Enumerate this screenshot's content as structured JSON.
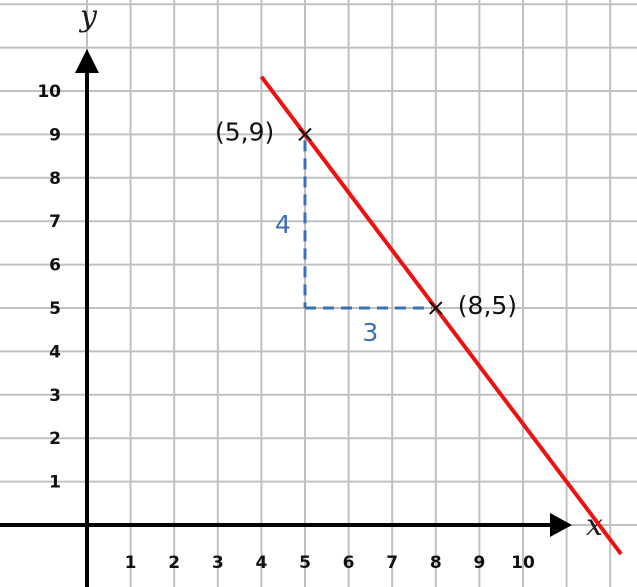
{
  "chart_data": {
    "type": "line",
    "xlabel": "x",
    "ylabel": "y",
    "x_ticks": [
      "1",
      "2",
      "3",
      "4",
      "5",
      "6",
      "7",
      "8",
      "9",
      "10"
    ],
    "y_ticks": [
      "1",
      "2",
      "3",
      "4",
      "5",
      "6",
      "7",
      "8",
      "9",
      "10"
    ],
    "xlim": [
      -0.5,
      12
    ],
    "ylim": [
      -0.7,
      12
    ],
    "grid": true,
    "series": [
      {
        "x": [
          4,
          12.25
        ],
        "y": [
          10.33,
          -0.67
        ],
        "color": "#ee1111"
      }
    ],
    "points": [
      {
        "x": 5,
        "y": 9,
        "label": "(5,9)"
      },
      {
        "x": 8,
        "y": 5,
        "label": "(8,5)"
      }
    ],
    "slope_triangle": {
      "rise_label": "4",
      "run_label": "3",
      "color": "#3d6fb5"
    }
  }
}
